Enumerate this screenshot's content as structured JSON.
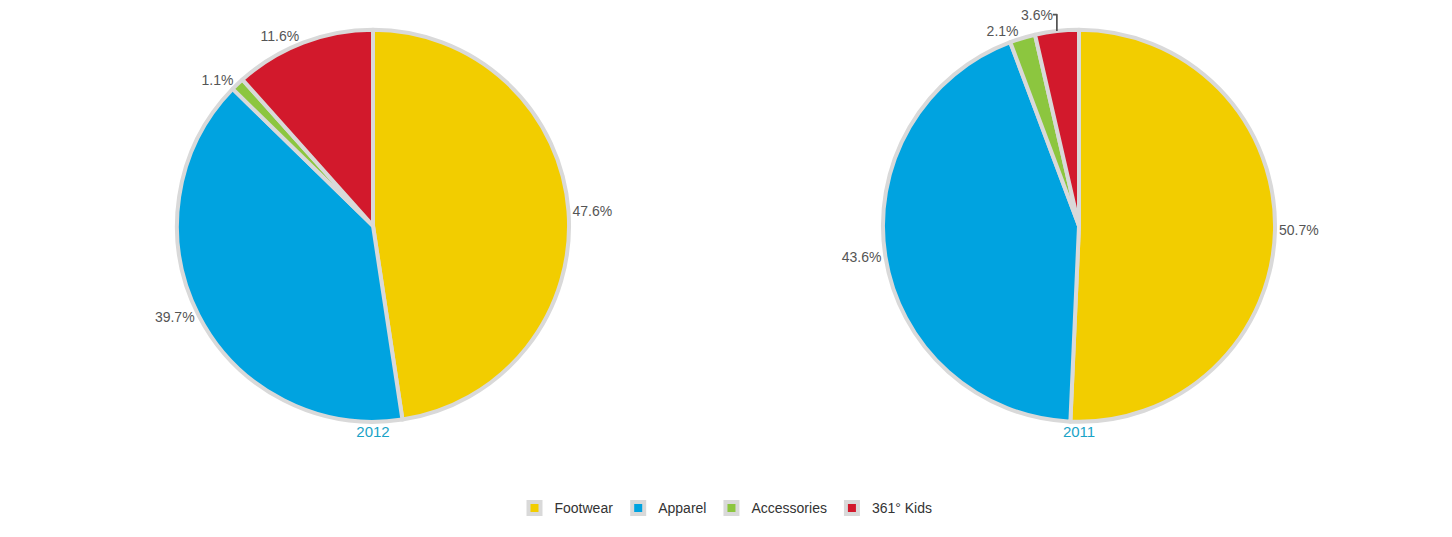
{
  "chart_data": [
    {
      "type": "pie",
      "title": "2012",
      "categories": [
        "Footwear",
        "Apparel",
        "Accessories",
        "361° Kids"
      ],
      "values": [
        47.6,
        39.7,
        1.1,
        11.6
      ],
      "value_labels": [
        "47.6%",
        "39.7%",
        "1.1%",
        "11.6%"
      ],
      "colors": [
        "#f2cd00",
        "#00a3e0",
        "#8cc63f",
        "#d2192c"
      ],
      "data_labels": true,
      "legend": "bottom"
    },
    {
      "type": "pie",
      "title": "2011",
      "categories": [
        "Footwear",
        "Apparel",
        "Accessories",
        "361° Kids"
      ],
      "values": [
        50.7,
        43.6,
        2.1,
        3.6
      ],
      "value_labels": [
        "50.7%",
        "43.6%",
        "2.1%",
        "3.6%"
      ],
      "colors": [
        "#f2cd00",
        "#00a3e0",
        "#8cc63f",
        "#d2192c"
      ],
      "data_labels": true,
      "legend": "bottom"
    }
  ]
}
